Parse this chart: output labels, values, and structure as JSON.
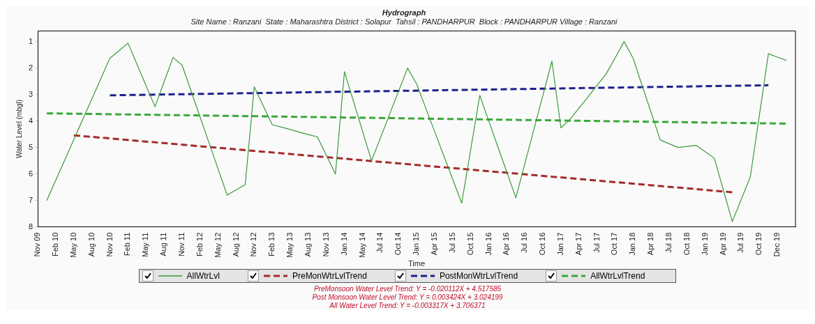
{
  "chart_data": {
    "type": "line",
    "title": "Hydrograph",
    "subtitle": "Site Name : Ranzani  State : Maharashtra District : Solapur  Tahsil : PANDHARPUR  Block : PANDHARPUR Village : Ranzani",
    "xlabel": "Time",
    "ylabel": "Water Level (mbgl)",
    "categories": [
      "Nov 09",
      null,
      "Feb 10",
      null,
      "May 10",
      null,
      "Aug 10",
      null,
      "Nov 10",
      null,
      "Feb 11",
      null,
      "May 11",
      null,
      "Aug 11",
      null,
      "Nov 11",
      null,
      "Feb 12",
      null,
      "May 12",
      null,
      "Aug 12",
      null,
      "Nov 12",
      null,
      "Feb 13",
      null,
      "May 13",
      null,
      "Aug 13",
      null,
      "Nov 13",
      null,
      "Jan 14",
      null,
      "May 14",
      null,
      "Jul 14",
      null,
      "Oct 14",
      null,
      "Jan 15",
      null,
      "Apr 15",
      null,
      "Jul 15",
      null,
      "Oct 15",
      null,
      "Jan 16",
      null,
      "Apr 16",
      null,
      "Jul 16",
      null,
      "Oct 16",
      null,
      "Jan 17",
      null,
      "Apr 17",
      null,
      "Jul 17",
      null,
      "Oct 17",
      null,
      "Jan 18",
      null,
      "Apr 18",
      null,
      "Jul 18",
      null,
      "Oct 18",
      null,
      "Jan 19",
      null,
      "Apr 19",
      null,
      "Jul 19",
      null,
      "Oct 19",
      null,
      "Dec 19",
      null,
      null
    ],
    "ylim": [
      8,
      0.6
    ],
    "yticks": [
      1,
      2,
      3,
      4,
      5,
      6,
      7,
      8
    ],
    "legend": "bottom",
    "marker": "none",
    "series": [
      {
        "name": "AllWtrLvl",
        "color": "#3a9a3a",
        "line_style": "solid",
        "values": [
          null,
          7.0,
          6.23,
          5.47,
          4.7,
          3.93,
          3.17,
          2.4,
          1.63,
          1.35,
          1.06,
          1.86,
          2.66,
          3.46,
          2.53,
          1.6,
          1.89,
          2.87,
          3.85,
          4.84,
          5.82,
          6.8,
          6.6,
          6.4,
          2.71,
          3.43,
          4.14,
          4.23,
          4.32,
          4.42,
          4.51,
          4.6,
          5.3,
          6.0,
          2.14,
          3.26,
          4.38,
          5.5,
          4.63,
          3.75,
          2.88,
          2.0,
          2.6,
          3.5,
          4.4,
          5.3,
          6.2,
          7.1,
          5.07,
          3.03,
          4.0,
          4.97,
          5.93,
          6.9,
          5.61,
          4.32,
          3.03,
          1.74,
          4.26,
          3.94,
          3.51,
          3.09,
          2.66,
          2.23,
          1.62,
          1.0,
          1.63,
          2.66,
          3.68,
          4.71,
          4.86,
          5.0,
          4.96,
          4.92,
          5.16,
          5.4,
          6.6,
          7.8,
          6.95,
          6.1,
          3.78,
          1.46,
          1.59,
          1.71,
          null
        ]
      },
      {
        "name": "PreMonWtrLvlTrend",
        "color": "#a52a2a",
        "line_style": "dashed",
        "values": [
          null,
          null,
          null,
          null,
          4.54,
          null,
          null,
          null,
          null,
          null,
          null,
          null,
          null,
          null,
          null,
          null,
          null,
          null,
          null,
          null,
          null,
          null,
          null,
          null,
          null,
          null,
          null,
          null,
          null,
          null,
          null,
          null,
          null,
          null,
          null,
          null,
          null,
          null,
          null,
          null,
          null,
          null,
          null,
          null,
          null,
          null,
          null,
          null,
          null,
          null,
          null,
          null,
          null,
          null,
          null,
          null,
          null,
          null,
          null,
          null,
          null,
          null,
          null,
          null,
          null,
          null,
          null,
          null,
          null,
          null,
          null,
          null,
          null,
          null,
          null,
          null,
          null,
          6.69,
          null,
          null,
          null,
          null,
          null,
          null,
          null
        ]
      },
      {
        "name": "PostMonWtrLvlTrend",
        "color": "#1f1f8f",
        "line_style": "dashed",
        "values": [
          null,
          null,
          null,
          null,
          null,
          null,
          null,
          null,
          3.03,
          null,
          null,
          null,
          null,
          null,
          null,
          null,
          null,
          null,
          null,
          null,
          null,
          null,
          null,
          null,
          null,
          null,
          null,
          null,
          null,
          null,
          null,
          null,
          null,
          null,
          null,
          null,
          null,
          null,
          null,
          null,
          null,
          null,
          null,
          null,
          null,
          null,
          null,
          null,
          null,
          null,
          null,
          null,
          null,
          null,
          null,
          null,
          null,
          null,
          null,
          null,
          null,
          null,
          null,
          null,
          null,
          null,
          null,
          null,
          null,
          null,
          null,
          null,
          null,
          null,
          null,
          null,
          null,
          null,
          null,
          null,
          null,
          2.65,
          null,
          null,
          null
        ]
      },
      {
        "name": "AllWtrLvlTrend",
        "color": "#3aa83a",
        "line_style": "dashed",
        "values": [
          null,
          3.71,
          null,
          null,
          null,
          null,
          null,
          null,
          null,
          null,
          null,
          null,
          null,
          null,
          null,
          null,
          null,
          null,
          null,
          null,
          null,
          null,
          null,
          null,
          null,
          null,
          null,
          null,
          null,
          null,
          null,
          null,
          null,
          null,
          null,
          null,
          null,
          null,
          null,
          null,
          null,
          null,
          null,
          null,
          null,
          null,
          null,
          null,
          null,
          null,
          null,
          null,
          null,
          null,
          null,
          null,
          null,
          null,
          null,
          null,
          null,
          null,
          null,
          null,
          null,
          null,
          null,
          null,
          null,
          null,
          null,
          null,
          null,
          null,
          null,
          null,
          null,
          null,
          null,
          null,
          null,
          null,
          null,
          4.1,
          null
        ]
      }
    ],
    "annotations": [
      "PreMonsoon Water Level Trend: Y = -0.020112X + 4.517585",
      "Post Monsoon Water Level Trend: Y = 0.003424X + 3.024199",
      "All Water Level Trend: Y = -0.003317X + 3.706371"
    ]
  }
}
